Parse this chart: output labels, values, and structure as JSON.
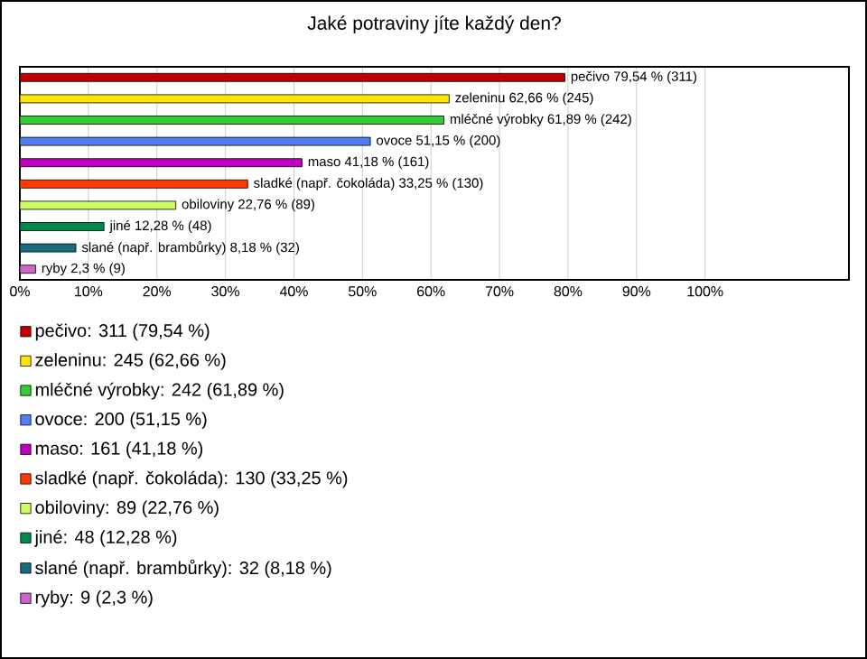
{
  "chart_data": {
    "type": "bar",
    "orientation": "horizontal",
    "title": "Jaké potraviny jíte každý den?",
    "categories": [
      null,
      null,
      null,
      null,
      null,
      null,
      null,
      null,
      null,
      null
    ],
    "series": [
      {
        "name": "pečivo: 311 (79,54 %)",
        "color": "#c00000",
        "values": [
          79.54,
          null,
          null,
          null,
          null,
          null,
          null,
          null,
          null,
          null
        ],
        "value_labels": [
          "pečivo 79,54 % (311)",
          null,
          null,
          null,
          null,
          null,
          null,
          null,
          null,
          null
        ]
      },
      {
        "name": "zeleninu: 245 (62,66 %)",
        "color": "#ffe600",
        "values": [
          null,
          62.66,
          null,
          null,
          null,
          null,
          null,
          null,
          null,
          null
        ],
        "value_labels": [
          null,
          "zeleninu 62,66 % (245)",
          null,
          null,
          null,
          null,
          null,
          null,
          null,
          null
        ]
      },
      {
        "name": "mléčné výrobky: 242 (61,89 %)",
        "color": "#33cc33",
        "values": [
          null,
          null,
          61.89,
          null,
          null,
          null,
          null,
          null,
          null,
          null
        ],
        "value_labels": [
          null,
          null,
          "mléčné výrobky 61,89 % (242)",
          null,
          null,
          null,
          null,
          null,
          null,
          null
        ]
      },
      {
        "name": "ovoce: 200 (51,15 %)",
        "color": "#4f7ff5",
        "values": [
          null,
          null,
          null,
          51.15,
          null,
          null,
          null,
          null,
          null,
          null
        ],
        "value_labels": [
          null,
          null,
          null,
          "ovoce 51,15 % (200)",
          null,
          null,
          null,
          null,
          null,
          null
        ]
      },
      {
        "name": "maso: 161 (41,18 %)",
        "color": "#c000c0",
        "values": [
          null,
          null,
          null,
          null,
          41.18,
          null,
          null,
          null,
          null,
          null
        ],
        "value_labels": [
          null,
          null,
          null,
          null,
          "maso 41,18 % (161)",
          null,
          null,
          null,
          null,
          null
        ]
      },
      {
        "name": "sladké (např. čokoláda): 130 (33,25 %)",
        "color": "#ff3a00",
        "values": [
          null,
          null,
          null,
          null,
          null,
          33.25,
          null,
          null,
          null,
          null
        ],
        "value_labels": [
          null,
          null,
          null,
          null,
          null,
          "sladké (např. čokoláda) 33,25 % (130)",
          null,
          null,
          null,
          null
        ]
      },
      {
        "name": "obiloviny: 89 (22,76 %)",
        "color": "#ccff66",
        "values": [
          null,
          null,
          null,
          null,
          null,
          null,
          22.76,
          null,
          null,
          null
        ],
        "value_labels": [
          null,
          null,
          null,
          null,
          null,
          null,
          "obiloviny 22,76 % (89)",
          null,
          null,
          null
        ]
      },
      {
        "name": "jiné: 48 (12,28 %)",
        "color": "#008a4a",
        "values": [
          null,
          null,
          null,
          null,
          null,
          null,
          null,
          12.28,
          null,
          null
        ],
        "value_labels": [
          null,
          null,
          null,
          null,
          null,
          null,
          null,
          "jiné 12,28 % (48)",
          null,
          null
        ]
      },
      {
        "name": "slané (např. brambůrky): 32 (8,18 %)",
        "color": "#1a6b80",
        "values": [
          null,
          null,
          null,
          null,
          null,
          null,
          null,
          null,
          8.18,
          null
        ],
        "value_labels": [
          null,
          null,
          null,
          null,
          null,
          null,
          null,
          null,
          "slané (např. brambůrky) 8,18 % (32)",
          null
        ]
      },
      {
        "name": "ryby: 9 (2,3 %)",
        "color": "#cc66cc",
        "values": [
          null,
          null,
          null,
          null,
          null,
          null,
          null,
          null,
          null,
          2.3
        ],
        "value_labels": [
          null,
          null,
          null,
          null,
          null,
          null,
          null,
          null,
          null,
          "ryby 2,3 % (9)"
        ]
      }
    ],
    "xlim": [
      0,
      121
    ],
    "xticks": [
      {
        "value": 0,
        "label": "0%"
      },
      {
        "value": 10,
        "label": "10%"
      },
      {
        "value": 20,
        "label": "20%"
      },
      {
        "value": 30,
        "label": "30%"
      },
      {
        "value": 40,
        "label": "40%"
      },
      {
        "value": 50,
        "label": "50%"
      },
      {
        "value": 60,
        "label": "60%"
      },
      {
        "value": 70,
        "label": "70%"
      },
      {
        "value": 80,
        "label": "80%"
      },
      {
        "value": 90,
        "label": "90%"
      },
      {
        "value": 100,
        "label": "100%"
      }
    ],
    "grid": "x",
    "legend": "bottom",
    "tick_labels": "x"
  }
}
